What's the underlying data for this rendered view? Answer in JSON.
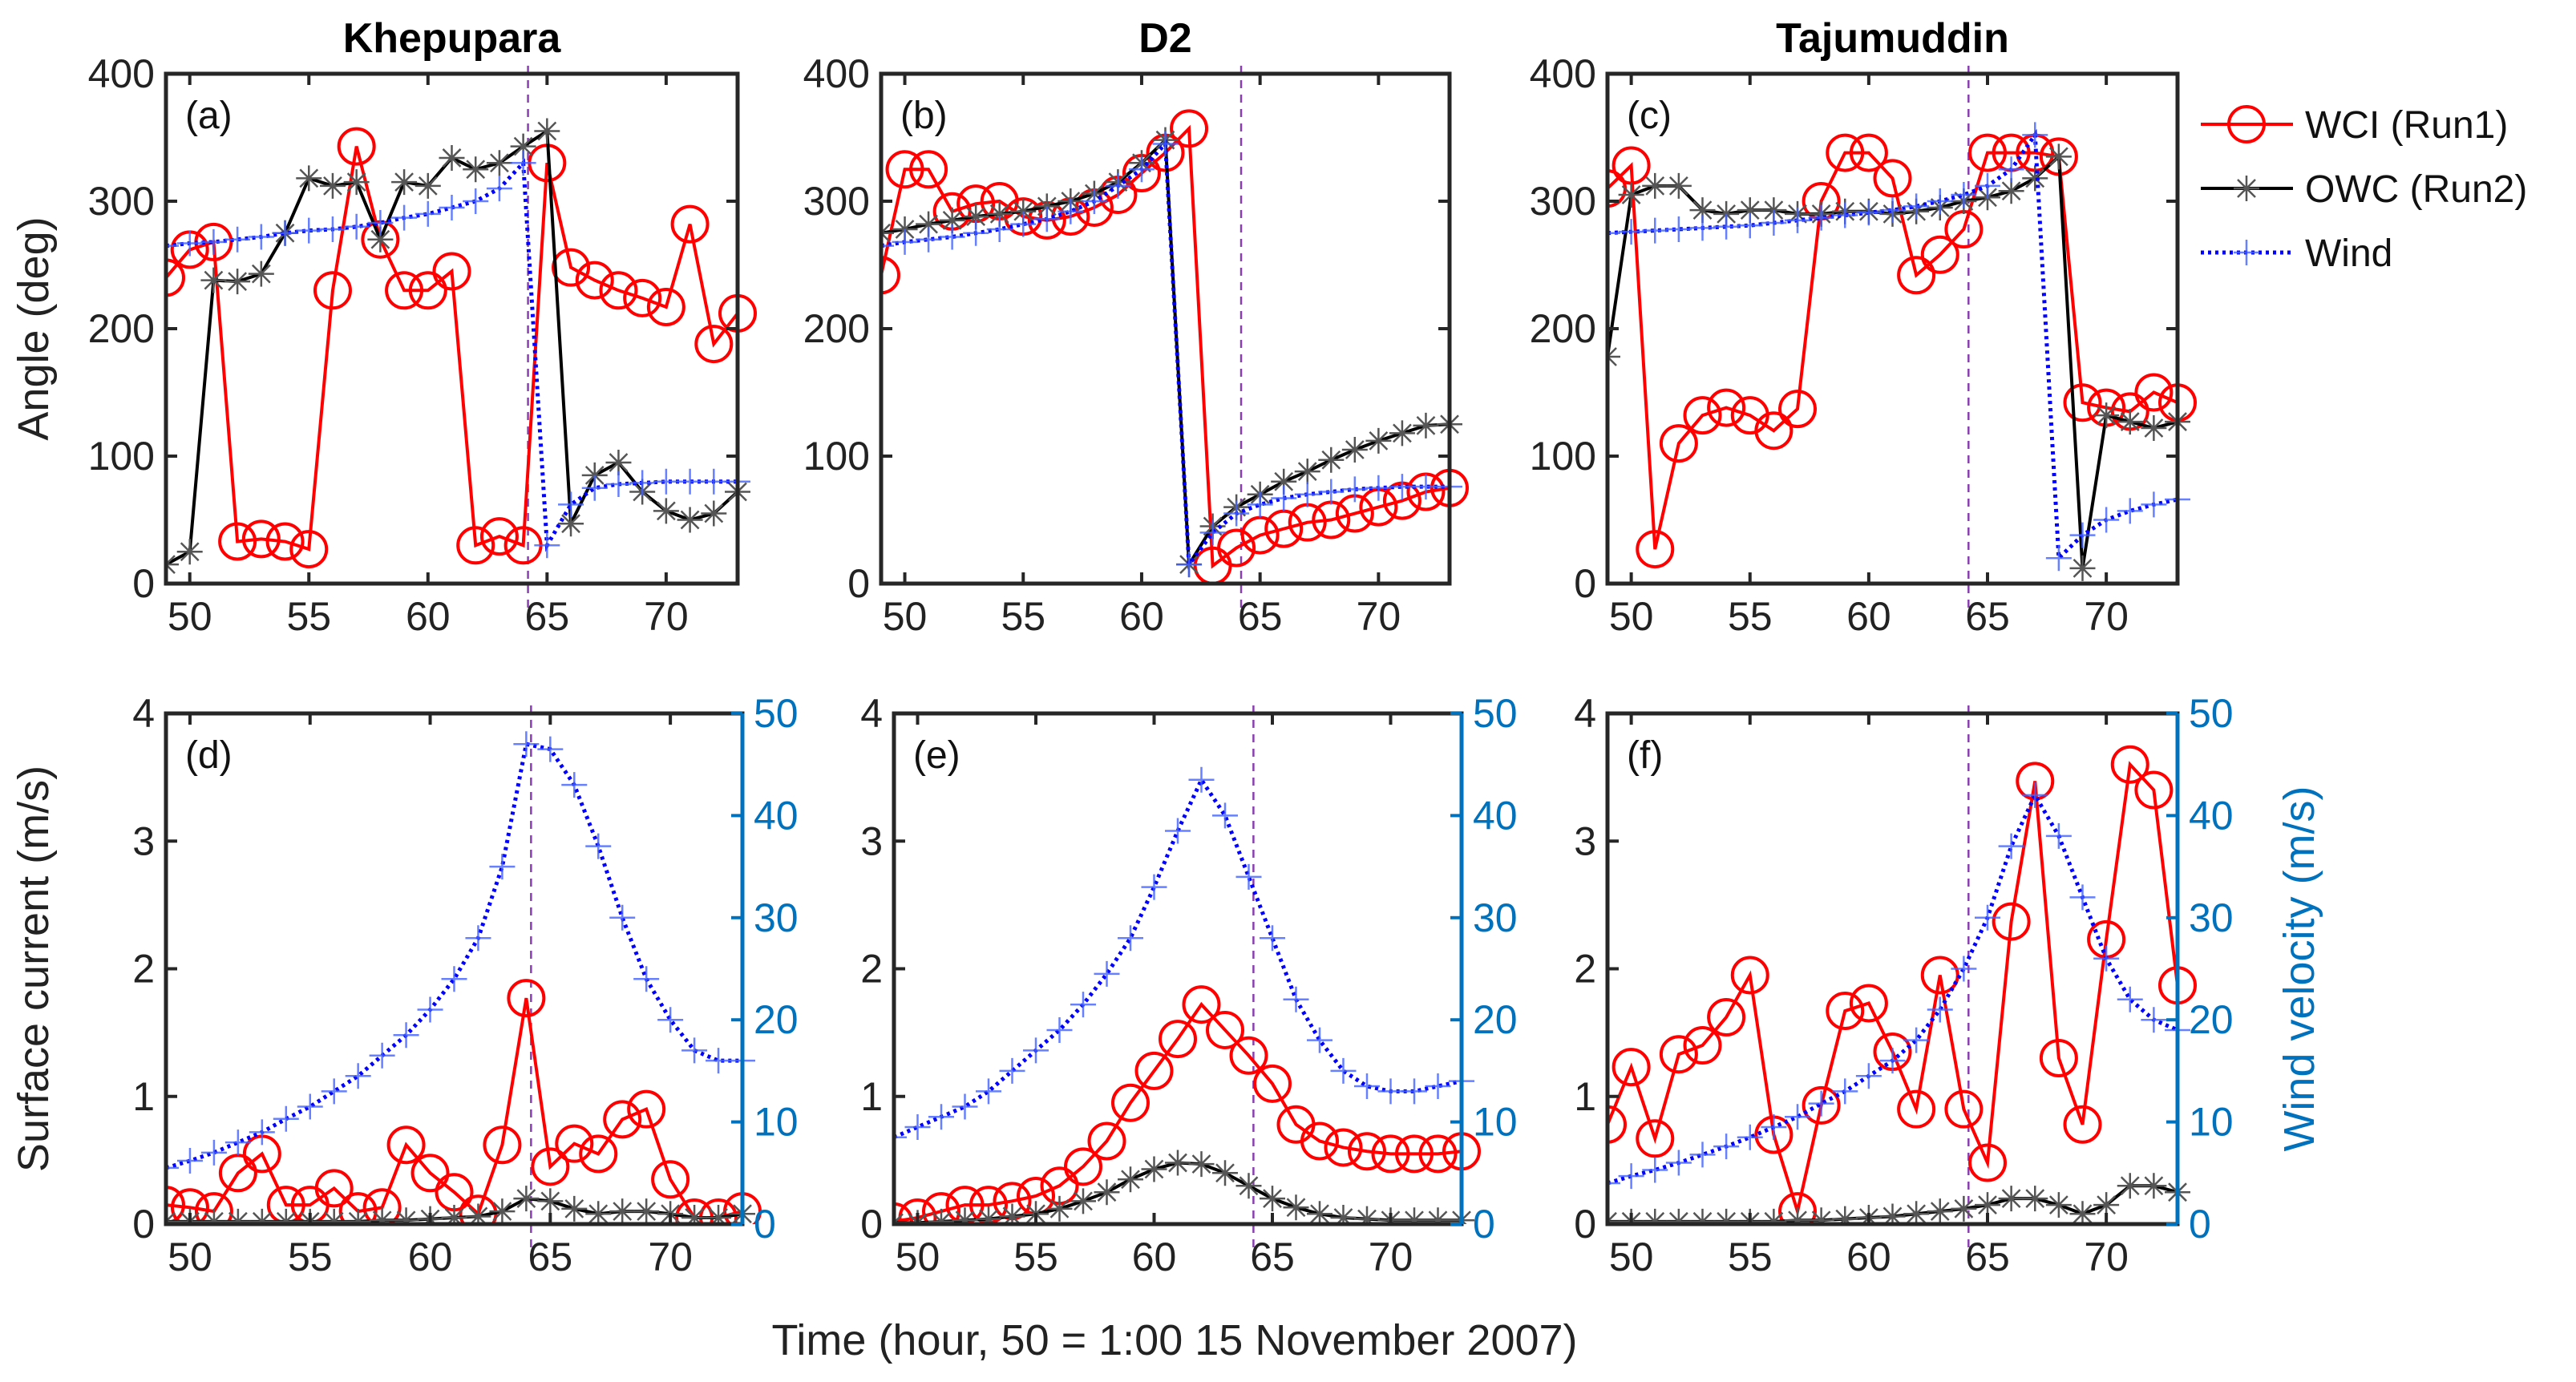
{
  "chart_data": {
    "type": "line",
    "x_label": "Time (hour, 50 = 1:00 15 November 2007)",
    "x": [
      49,
      50,
      51,
      52,
      53,
      54,
      55,
      56,
      57,
      58,
      59,
      60,
      61,
      62,
      63,
      64,
      65,
      66,
      67,
      68,
      69,
      70,
      71,
      72,
      73
    ],
    "xlim": [
      49,
      73
    ],
    "xticks": [
      "50",
      "55",
      "60",
      "65",
      "70"
    ],
    "marker_line_x": 64.2,
    "legend": {
      "placement": "outside-top-right",
      "entries": [
        {
          "label": "WCI (Run1)",
          "color": "#ff0000",
          "marker": "circle"
        },
        {
          "label": "OWC (Run2)",
          "color": "#000000",
          "marker": "asterisk"
        },
        {
          "label": "Wind",
          "color": "#0000ff",
          "marker": "plus"
        }
      ]
    },
    "columns": [
      "Khepupara",
      "D2",
      "Tajumuddin"
    ],
    "panels": [
      {
        "label": "(a)",
        "row": 0,
        "col": 0,
        "ylabel": "Angle (deg)",
        "ylim": [
          0,
          400
        ],
        "yticks": [
          "0",
          "100",
          "200",
          "300",
          "400"
        ],
        "series": [
          {
            "name": "WCI (Run1)",
            "values": [
              240,
              262,
              268,
              33,
              35,
              33,
              27,
              230,
              343,
              270,
              230,
              230,
              245,
              30,
              37,
              30,
              330,
              248,
              238,
              230,
              224,
              217,
              282,
              188,
              212
            ]
          },
          {
            "name": "OWC (Run2)",
            "values": [
              15,
              25,
              238,
              237,
              243,
              275,
              318,
              312,
              315,
              270,
              315,
              312,
              334,
              325,
              330,
              343,
              355,
              47,
              85,
              95,
              72,
              57,
              50,
              55,
              72
            ]
          },
          {
            "name": "Wind",
            "values": [
              265,
              267,
              268,
              270,
              272,
              275,
              277,
              278,
              280,
              283,
              287,
              290,
              295,
              300,
              310,
              330,
              30,
              62,
              75,
              78,
              79,
              80,
              80,
              80,
              80
            ]
          }
        ]
      },
      {
        "label": "(b)",
        "row": 0,
        "col": 1,
        "ylabel": "",
        "ylim": [
          0,
          400
        ],
        "yticks": [
          "0",
          "100",
          "200",
          "300",
          "400"
        ],
        "series": [
          {
            "name": "WCI (Run1)",
            "values": [
              242,
              325,
              325,
              292,
              298,
              300,
              288,
              285,
              288,
              295,
              305,
              322,
              338,
              357,
              14,
              28,
              38,
              43,
              48,
              50,
              55,
              60,
              65,
              72,
              75
            ]
          },
          {
            "name": "OWC (Run2)",
            "values": [
              275,
              278,
              282,
              285,
              288,
              290,
              292,
              296,
              300,
              306,
              315,
              330,
              348,
              15,
              45,
              60,
              70,
              80,
              88,
              97,
              105,
              112,
              118,
              124,
              125
            ]
          },
          {
            "name": "Wind",
            "values": [
              265,
              268,
              270,
              272,
              275,
              278,
              282,
              286,
              292,
              300,
              312,
              325,
              345,
              15,
              40,
              55,
              62,
              67,
              70,
              72,
              74,
              75,
              76,
              76,
              76
            ]
          }
        ]
      },
      {
        "label": "(c)",
        "row": 0,
        "col": 2,
        "ylabel": "",
        "ylim": [
          0,
          400
        ],
        "yticks": [
          "0",
          "100",
          "200",
          "300",
          "400"
        ],
        "series": [
          {
            "name": "WCI (Run1)",
            "values": [
              310,
              328,
              27,
              110,
              132,
              138,
              132,
              120,
              137,
              300,
              338,
              338,
              318,
              242,
              258,
              278,
              338,
              338,
              338,
              335,
              142,
              138,
              135,
              150,
              142
            ]
          },
          {
            "name": "OWC (Run2)",
            "values": [
              178,
              305,
              312,
              312,
              293,
              290,
              293,
              293,
              290,
              290,
              292,
              292,
              290,
              292,
              295,
              300,
              303,
              308,
              318,
              335,
              12,
              132,
              127,
              122,
              127
            ]
          },
          {
            "name": "Wind",
            "values": [
              275,
              276,
              277,
              278,
              279,
              280,
              281,
              283,
              285,
              287,
              289,
              291,
              293,
              296,
              300,
              305,
              312,
              325,
              352,
              20,
              38,
              50,
              57,
              62,
              66
            ]
          }
        ]
      },
      {
        "label": "(d)",
        "row": 1,
        "col": 0,
        "ylabel": "Surface current (m/s)",
        "ylim": [
          0,
          4
        ],
        "yticks": [
          "0",
          "1",
          "2",
          "3",
          "4"
        ],
        "y2label": "",
        "y2lim": [
          0,
          50
        ],
        "y2ticks": [
          "0",
          "10",
          "20",
          "30",
          "40",
          "50"
        ],
        "series": [
          {
            "name": "WCI (Run1)",
            "values": [
              0.15,
              0.13,
              0.1,
              0.4,
              0.55,
              0.15,
              0.15,
              0.28,
              0.1,
              0.13,
              0.62,
              0.4,
              0.25,
              0.08,
              0.62,
              1.77,
              0.45,
              0.63,
              0.55,
              0.82,
              0.9,
              0.35,
              0.05,
              0.05,
              0.1
            ]
          },
          {
            "name": "OWC (Run2)",
            "values": [
              0.02,
              0.02,
              0.02,
              0.02,
              0.02,
              0.02,
              0.02,
              0.02,
              0.02,
              0.03,
              0.03,
              0.04,
              0.05,
              0.06,
              0.1,
              0.2,
              0.18,
              0.12,
              0.08,
              0.1,
              0.1,
              0.08,
              0.05,
              0.05,
              0.08
            ]
          },
          {
            "name": "Wind",
            "axis": "right",
            "values": [
              5.5,
              6.2,
              7,
              8,
              9,
              10.3,
              11.5,
              13,
              14.5,
              16.5,
              18.5,
              21,
              24,
              28,
              35,
              47,
              46.5,
              43,
              37,
              30,
              24,
              20,
              17,
              16,
              16
            ]
          }
        ]
      },
      {
        "label": "(e)",
        "row": 1,
        "col": 1,
        "ylabel": "",
        "ylim": [
          0,
          4
        ],
        "yticks": [
          "0",
          "1",
          "2",
          "3",
          "4"
        ],
        "y2label": "",
        "y2lim": [
          0,
          50
        ],
        "y2ticks": [
          "0",
          "10",
          "20",
          "30",
          "40",
          "50"
        ],
        "series": [
          {
            "name": "WCI (Run1)",
            "values": [
              0.02,
              0.05,
              0.1,
              0.15,
              0.15,
              0.18,
              0.22,
              0.3,
              0.45,
              0.65,
              0.95,
              1.2,
              1.45,
              1.72,
              1.52,
              1.32,
              1.1,
              0.78,
              0.65,
              0.6,
              0.57,
              0.55,
              0.55,
              0.55,
              0.57
            ]
          },
          {
            "name": "OWC (Run2)",
            "values": [
              0.01,
              0.01,
              0.02,
              0.03,
              0.04,
              0.06,
              0.08,
              0.12,
              0.18,
              0.25,
              0.35,
              0.43,
              0.48,
              0.47,
              0.4,
              0.3,
              0.2,
              0.13,
              0.08,
              0.05,
              0.04,
              0.03,
              0.03,
              0.03,
              0.03
            ]
          },
          {
            "name": "Wind",
            "axis": "right",
            "values": [
              8.5,
              9.5,
              10.5,
              11.5,
              13,
              15,
              17,
              19,
              21.5,
              24.5,
              28,
              33,
              38.5,
              43.5,
              40,
              34,
              28,
              22,
              18,
              15,
              13.5,
              13,
              13,
              13.5,
              14
            ]
          }
        ]
      },
      {
        "label": "(f)",
        "row": 1,
        "col": 2,
        "ylabel": "",
        "ylim": [
          0,
          4
        ],
        "yticks": [
          "0",
          "1",
          "2",
          "3",
          "4"
        ],
        "y2label": "Wind velocity (m/s)",
        "y2lim": [
          0,
          50
        ],
        "y2ticks": [
          "0",
          "10",
          "20",
          "30",
          "40",
          "50"
        ],
        "series": [
          {
            "name": "WCI (Run1)",
            "values": [
              0.78,
              1.23,
              0.67,
              1.33,
              1.4,
              1.62,
              1.95,
              0.7,
              0.1,
              0.93,
              1.67,
              1.73,
              1.35,
              0.9,
              1.95,
              0.9,
              0.48,
              2.37,
              3.47,
              1.3,
              0.78,
              2.23,
              3.6,
              3.4,
              1.87
            ]
          },
          {
            "name": "OWC (Run2)",
            "values": [
              0.02,
              0.02,
              0.02,
              0.02,
              0.02,
              0.02,
              0.02,
              0.02,
              0.03,
              0.03,
              0.04,
              0.05,
              0.06,
              0.08,
              0.1,
              0.12,
              0.15,
              0.2,
              0.2,
              0.15,
              0.08,
              0.15,
              0.3,
              0.3,
              0.25
            ]
          },
          {
            "name": "Wind",
            "axis": "right",
            "values": [
              4,
              4.7,
              5.3,
              6,
              6.8,
              7.6,
              8.5,
              9.5,
              10.5,
              11.8,
              13,
              14.5,
              16,
              18,
              21,
              25,
              30,
              37,
              42,
              38,
              32,
              26,
              22,
              20,
              19
            ]
          }
        ]
      }
    ]
  }
}
